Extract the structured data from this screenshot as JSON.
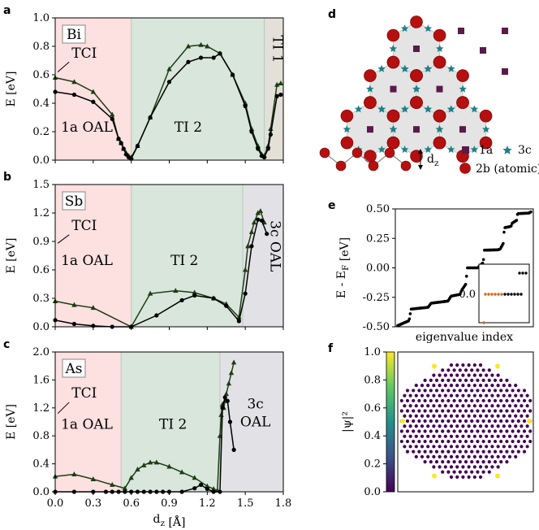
{
  "chart_data": [
    {
      "type": "line",
      "panel_letter": "a",
      "element_label": "Bi",
      "xlim": [
        0.0,
        1.8
      ],
      "ylim": [
        0.0,
        1.0
      ],
      "xticks": [
        "0.0",
        "0.3",
        "0.6",
        "0.9",
        "1.2",
        "1.5",
        "1.8"
      ],
      "yticks": [
        "0.0",
        "0.2",
        "0.4",
        "0.6",
        "0.8",
        "1.0"
      ],
      "ytick_values": [
        0.0,
        0.2,
        0.4,
        0.6,
        0.8,
        1.0
      ],
      "ylabel": "E [eV]",
      "regions": [
        {
          "from": 0.0,
          "to": 0.6,
          "label": "1a OAL",
          "color": "#fde0e0",
          "label_x": 0.25,
          "label_y": 0.2,
          "rotate": false
        },
        {
          "from": 0.6,
          "to": 1.65,
          "label": "TI 2",
          "color": "#d8e6dc",
          "label_x": 1.05,
          "label_y": 0.2,
          "rotate": false
        },
        {
          "from": 1.65,
          "to": 1.8,
          "label": "TI 1",
          "color": "#e3e0d8",
          "label_x": 1.72,
          "label_y": 0.78,
          "rotate": true
        }
      ],
      "tci_label": "TCI",
      "tci_label_pos": [
        0.13,
        0.72
      ],
      "tci_pointer": [
        [
          0.11,
          0.69
        ],
        [
          0.02,
          0.62
        ]
      ],
      "series": [
        {
          "marker": "triangle",
          "color": "#1d3d12",
          "x": [
            0.0,
            0.15,
            0.3,
            0.45,
            0.5,
            0.52,
            0.54,
            0.56,
            0.58,
            0.6,
            0.65,
            0.75,
            0.9,
            1.05,
            1.15,
            1.2,
            1.3,
            1.4,
            1.5,
            1.55,
            1.6,
            1.63,
            1.65,
            1.68,
            1.7,
            1.75,
            1.78
          ],
          "y": [
            0.58,
            0.55,
            0.48,
            0.32,
            0.15,
            0.12,
            0.08,
            0.05,
            0.03,
            0.02,
            0.1,
            0.3,
            0.64,
            0.8,
            0.81,
            0.8,
            0.75,
            0.6,
            0.4,
            0.22,
            0.1,
            0.04,
            0.03,
            0.1,
            0.22,
            0.53,
            0.54
          ]
        },
        {
          "marker": "circle",
          "color": "#000000",
          "x": [
            0.0,
            0.15,
            0.3,
            0.45,
            0.5,
            0.52,
            0.54,
            0.56,
            0.58,
            0.6,
            0.65,
            0.75,
            0.9,
            1.05,
            1.15,
            1.25,
            1.3,
            1.4,
            1.5,
            1.55,
            1.6,
            1.63,
            1.65,
            1.68,
            1.7,
            1.75,
            1.78
          ],
          "y": [
            0.48,
            0.46,
            0.41,
            0.29,
            0.15,
            0.12,
            0.08,
            0.04,
            0.02,
            0.01,
            0.1,
            0.3,
            0.55,
            0.69,
            0.72,
            0.72,
            0.75,
            0.6,
            0.38,
            0.2,
            0.08,
            0.03,
            0.02,
            0.08,
            0.18,
            0.45,
            0.46
          ]
        }
      ]
    },
    {
      "type": "line",
      "panel_letter": "b",
      "element_label": "Sb",
      "xlim": [
        0.0,
        1.8
      ],
      "ylim": [
        0.0,
        1.5
      ],
      "xticks": [],
      "yticks": [
        "0.0",
        "0.3",
        "0.6",
        "0.9",
        "1.2",
        "1.5"
      ],
      "ytick_values": [
        0.0,
        0.3,
        0.6,
        0.9,
        1.2,
        1.5
      ],
      "ylabel": "E [eV]",
      "regions": [
        {
          "from": 0.0,
          "to": 0.6,
          "label": "1a OAL",
          "color": "#fde0e0",
          "label_x": 0.25,
          "label_y": 0.65,
          "rotate": false
        },
        {
          "from": 0.6,
          "to": 1.48,
          "label": "TI 2",
          "color": "#d8e6dc",
          "label_x": 1.02,
          "label_y": 0.65,
          "rotate": false
        },
        {
          "from": 1.48,
          "to": 1.8,
          "label": "3c OAL",
          "color": "#e2e2e6",
          "label_x": 1.7,
          "label_y": 0.85,
          "rotate": true
        }
      ],
      "tci_label": "TCI",
      "tci_label_pos": [
        0.13,
        1.02
      ],
      "tci_pointer": [
        [
          0.11,
          0.97
        ],
        [
          0.02,
          0.88
        ]
      ],
      "series": [
        {
          "marker": "triangle",
          "color": "#1d3d12",
          "x": [
            0.0,
            0.15,
            0.3,
            0.6,
            0.75,
            0.95,
            1.1,
            1.25,
            1.35,
            1.45,
            1.5,
            1.52,
            1.55,
            1.57,
            1.6,
            1.62,
            1.65
          ],
          "y": [
            0.27,
            0.23,
            0.2,
            0.0,
            0.35,
            0.38,
            0.36,
            0.3,
            0.24,
            0.1,
            0.6,
            0.85,
            1.0,
            1.1,
            1.2,
            1.22,
            1.1
          ]
        },
        {
          "marker": "circle",
          "color": "#000000",
          "x": [
            0.0,
            0.15,
            0.3,
            0.45,
            0.6,
            0.8,
            1.0,
            1.1,
            1.25,
            1.35,
            1.45,
            1.5,
            1.55,
            1.6,
            1.63,
            1.67
          ],
          "y": [
            0.07,
            0.03,
            0.01,
            0.0,
            0.0,
            0.12,
            0.28,
            0.33,
            0.3,
            0.22,
            0.06,
            0.35,
            0.85,
            1.13,
            1.12,
            0.98
          ]
        }
      ]
    },
    {
      "type": "line",
      "panel_letter": "c",
      "element_label": "As",
      "xlim": [
        0.0,
        1.8
      ],
      "ylim": [
        0.0,
        2.0
      ],
      "xticks": [
        "0.0",
        "0.3",
        "0.6",
        "0.9",
        "1.2",
        "1.5",
        "1.8"
      ],
      "yticks": [
        "0.0",
        "0.4",
        "0.8",
        "1.2",
        "1.6",
        "2.0"
      ],
      "ytick_values": [
        0.0,
        0.4,
        0.8,
        1.2,
        1.6,
        2.0
      ],
      "ylabel": "E [eV]",
      "xlabel": "d$_z$ [Å]",
      "regions": [
        {
          "from": 0.0,
          "to": 0.52,
          "label": "1a OAL",
          "color": "#fde0e0",
          "label_x": 0.25,
          "label_y": 0.9,
          "rotate": false
        },
        {
          "from": 0.52,
          "to": 1.3,
          "label": "TI 2",
          "color": "#d8e6dc",
          "label_x": 0.93,
          "label_y": 0.9,
          "rotate": false
        },
        {
          "from": 1.3,
          "to": 1.8,
          "label": "3c",
          "label2": "OAL",
          "color": "#e2e2e6",
          "label_x": 1.58,
          "label_y": 1.1,
          "rotate": false
        }
      ],
      "tci_label": "TCI",
      "tci_label_pos": [
        0.13,
        1.35
      ],
      "tci_pointer": [
        [
          0.11,
          1.28
        ],
        [
          0.02,
          1.12
        ]
      ],
      "series": [
        {
          "marker": "triangle",
          "color": "#1d3d12",
          "x": [
            0.0,
            0.15,
            0.3,
            0.45,
            0.55,
            0.6,
            0.65,
            0.7,
            0.75,
            0.8,
            0.9,
            1.0,
            1.1,
            1.2,
            1.25,
            1.28,
            1.3,
            1.31,
            1.32,
            1.33,
            1.34,
            1.35,
            1.37,
            1.39,
            1.41
          ],
          "y": [
            0.22,
            0.25,
            0.18,
            0.1,
            0.05,
            0.2,
            0.32,
            0.38,
            0.42,
            0.42,
            0.36,
            0.28,
            0.2,
            0.08,
            0.04,
            0.02,
            0.8,
            1.1,
            1.25,
            1.2,
            1.3,
            1.4,
            1.55,
            1.7,
            1.85
          ]
        },
        {
          "marker": "circle",
          "color": "#000000",
          "x": [
            0.0,
            0.15,
            0.3,
            0.4,
            0.45,
            0.5,
            0.55,
            0.6,
            0.65,
            0.7,
            0.75,
            0.8,
            0.85,
            0.9,
            1.0,
            1.1,
            1.15,
            1.2,
            1.25,
            1.3,
            1.32,
            1.34,
            1.36,
            1.38,
            1.41
          ],
          "y": [
            0.0,
            0.0,
            0.0,
            0.0,
            0.0,
            0.0,
            0.0,
            0.0,
            0.0,
            0.0,
            0.0,
            0.0,
            0.0,
            0.0,
            0.0,
            0.05,
            0.1,
            0.04,
            0.0,
            0.0,
            1.2,
            1.35,
            1.3,
            1.0,
            0.6
          ]
        }
      ]
    },
    {
      "type": "diagram",
      "panel_letter": "d",
      "legend": [
        {
          "symbol": "square",
          "label": "1a",
          "color": "#5a1a4a"
        },
        {
          "symbol": "star",
          "label": "3c",
          "color": "#1f7f86"
        },
        {
          "symbol": "circle",
          "label": "2b (atomic)",
          "color": "#b50f0f"
        }
      ],
      "dz_label": "d$_z$"
    },
    {
      "type": "scatter",
      "panel_letter": "e",
      "ylim": [
        -0.5,
        0.5
      ],
      "yticks": [
        "-0.50",
        "-0.25",
        "0.00",
        "0.25",
        "0.50"
      ],
      "ytick_values": [
        -0.5,
        -0.25,
        0.0,
        0.25,
        0.5
      ],
      "ylabel": "E - E$_F$ [eV]",
      "xlabel": "eigenvalue index",
      "n_points": 150,
      "inset": {
        "ytick": "0.0",
        "highlight_color": "#d2691e"
      }
    },
    {
      "type": "heatmap",
      "panel_letter": "f",
      "colorbar_ticks": [
        "0.0",
        "0.2",
        "0.4",
        "0.6",
        "0.8",
        "1.0"
      ],
      "colorbar_label": "|ψ|²",
      "colors": {
        "low": "#440154",
        "high": "#fde725"
      }
    }
  ]
}
